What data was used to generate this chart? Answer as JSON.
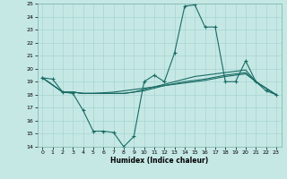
{
  "xlabel": "Humidex (Indice chaleur)",
  "bg_color": "#c5e8e5",
  "grid_color": "#a8d4d0",
  "line_color": "#1a6b65",
  "xlim": [
    -0.5,
    23.5
  ],
  "ylim": [
    14,
    25
  ],
  "xticks": [
    0,
    1,
    2,
    3,
    4,
    5,
    6,
    7,
    8,
    9,
    10,
    11,
    12,
    13,
    14,
    15,
    16,
    17,
    18,
    19,
    20,
    21,
    22,
    23
  ],
  "yticks": [
    14,
    15,
    16,
    17,
    18,
    19,
    20,
    21,
    22,
    23,
    24,
    25
  ],
  "line1_x": [
    0,
    1,
    2,
    3,
    4,
    5,
    6,
    7,
    8,
    9,
    10,
    11,
    12,
    13,
    14,
    15,
    16,
    17,
    18,
    19,
    20,
    21,
    22,
    23
  ],
  "line1_y": [
    19.3,
    19.2,
    18.2,
    18.1,
    16.8,
    15.2,
    15.2,
    15.1,
    14.0,
    14.8,
    19.0,
    19.5,
    19.0,
    21.2,
    24.8,
    24.9,
    23.2,
    23.2,
    19.0,
    19.0,
    20.6,
    19.0,
    18.3,
    18.0
  ],
  "line2_x": [
    0,
    2,
    3,
    4,
    5,
    6,
    7,
    8,
    9,
    10,
    11,
    12,
    13,
    14,
    15,
    16,
    17,
    18,
    19,
    20,
    21,
    22,
    23
  ],
  "line2_y": [
    19.3,
    18.2,
    18.2,
    18.1,
    18.1,
    18.1,
    18.1,
    18.1,
    18.2,
    18.4,
    18.6,
    18.8,
    19.0,
    19.2,
    19.4,
    19.5,
    19.6,
    19.7,
    19.8,
    19.9,
    19.0,
    18.5,
    18.0
  ],
  "line3_x": [
    0,
    2,
    3,
    4,
    5,
    6,
    7,
    8,
    9,
    10,
    11,
    12,
    13,
    14,
    15,
    16,
    17,
    18,
    19,
    20,
    21,
    22,
    23
  ],
  "line3_y": [
    19.3,
    18.2,
    18.2,
    18.1,
    18.1,
    18.1,
    18.1,
    18.1,
    18.2,
    18.3,
    18.5,
    18.7,
    18.85,
    19.0,
    19.1,
    19.2,
    19.35,
    19.5,
    19.6,
    19.7,
    19.0,
    18.5,
    18.0
  ],
  "line4_x": [
    0,
    2,
    3,
    4,
    5,
    6,
    7,
    8,
    9,
    10,
    11,
    12,
    13,
    14,
    15,
    16,
    17,
    18,
    19,
    20,
    21,
    22,
    23
  ],
  "line4_y": [
    19.3,
    18.2,
    18.2,
    18.1,
    18.1,
    18.15,
    18.2,
    18.3,
    18.4,
    18.5,
    18.6,
    18.7,
    18.8,
    18.9,
    19.0,
    19.1,
    19.25,
    19.4,
    19.5,
    19.6,
    19.0,
    18.5,
    18.0
  ]
}
